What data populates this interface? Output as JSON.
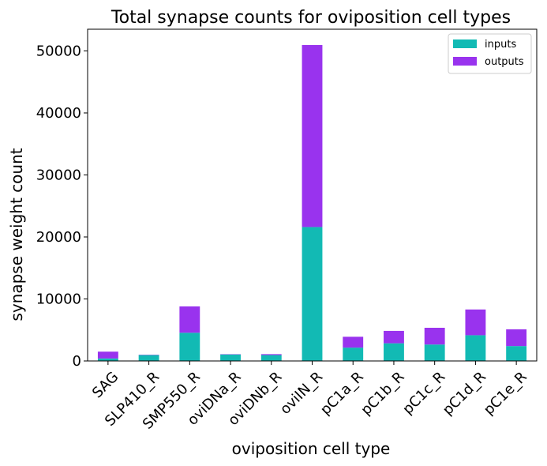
{
  "chart_data": {
    "type": "bar",
    "stacked": true,
    "title": "Total synapse counts for oviposition cell types",
    "xlabel": "oviposition cell type",
    "ylabel": "synapse weight count",
    "categories": [
      "SAG",
      "SLP410_R",
      "SMP550_R",
      "oviDNa_R",
      "oviDNb_R",
      "oviIN_R",
      "pC1a_R",
      "pC1b_R",
      "pC1c_R",
      "pC1d_R",
      "pC1e_R"
    ],
    "series": [
      {
        "name": "inputs",
        "color": "#12bab4",
        "values": [
          400,
          950,
          4550,
          1050,
          950,
          21600,
          2150,
          2850,
          2650,
          4150,
          2400
        ]
      },
      {
        "name": "outputs",
        "color": "#9933ee",
        "values": [
          1100,
          50,
          4250,
          50,
          150,
          29350,
          1750,
          2000,
          2700,
          4150,
          2700
        ]
      }
    ],
    "ylim": [
      0,
      53500
    ],
    "yticks": [
      0,
      10000,
      20000,
      30000,
      40000,
      50000
    ],
    "grid": false,
    "legend": "top-right"
  }
}
